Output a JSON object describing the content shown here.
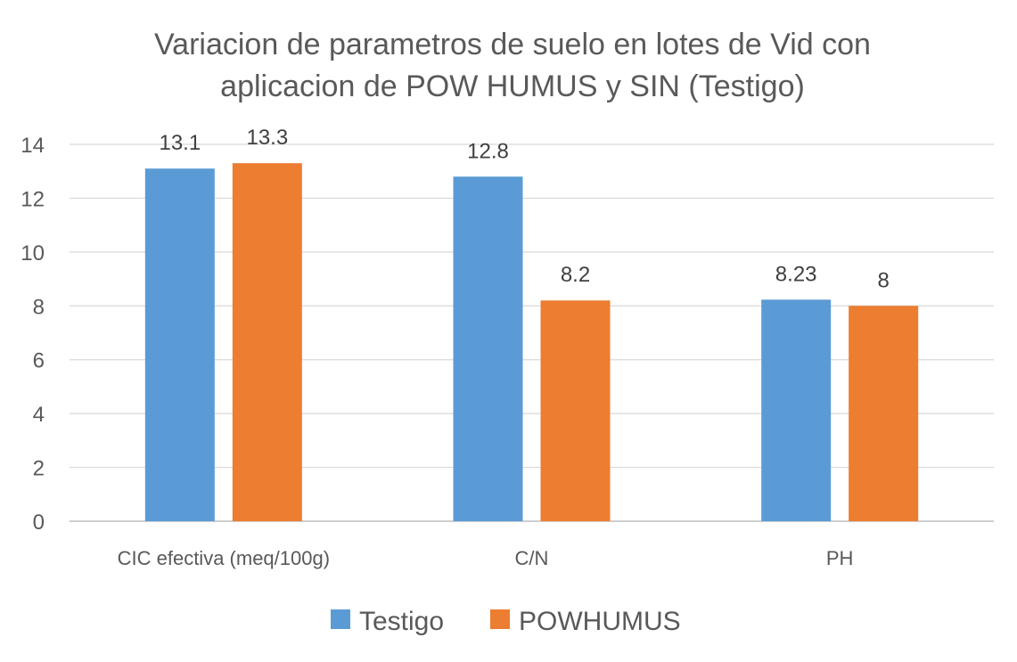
{
  "chart_data": {
    "type": "bar",
    "title_lines": [
      "Variacion de parametros de suelo en lotes de Vid con",
      "aplicacion de POW HUMUS y SIN (Testigo)"
    ],
    "categories": [
      "CIC efectiva (meq/100g)",
      "C/N",
      "PH"
    ],
    "series": [
      {
        "name": "Testigo",
        "color": "#5B9BD5",
        "values": [
          13.1,
          12.8,
          8.23
        ],
        "labels": [
          "13.1",
          "12.8",
          "8.23"
        ]
      },
      {
        "name": "POWHUMUS",
        "color": "#ED7D31",
        "values": [
          13.3,
          8.2,
          8
        ],
        "labels": [
          "13.3",
          "8.2",
          "8"
        ]
      }
    ],
    "ylim": [
      0,
      14
    ],
    "yticks": [
      "0",
      "2",
      "4",
      "6",
      "8",
      "10",
      "12",
      "14"
    ],
    "grid": true,
    "legend_position": "bottom"
  }
}
